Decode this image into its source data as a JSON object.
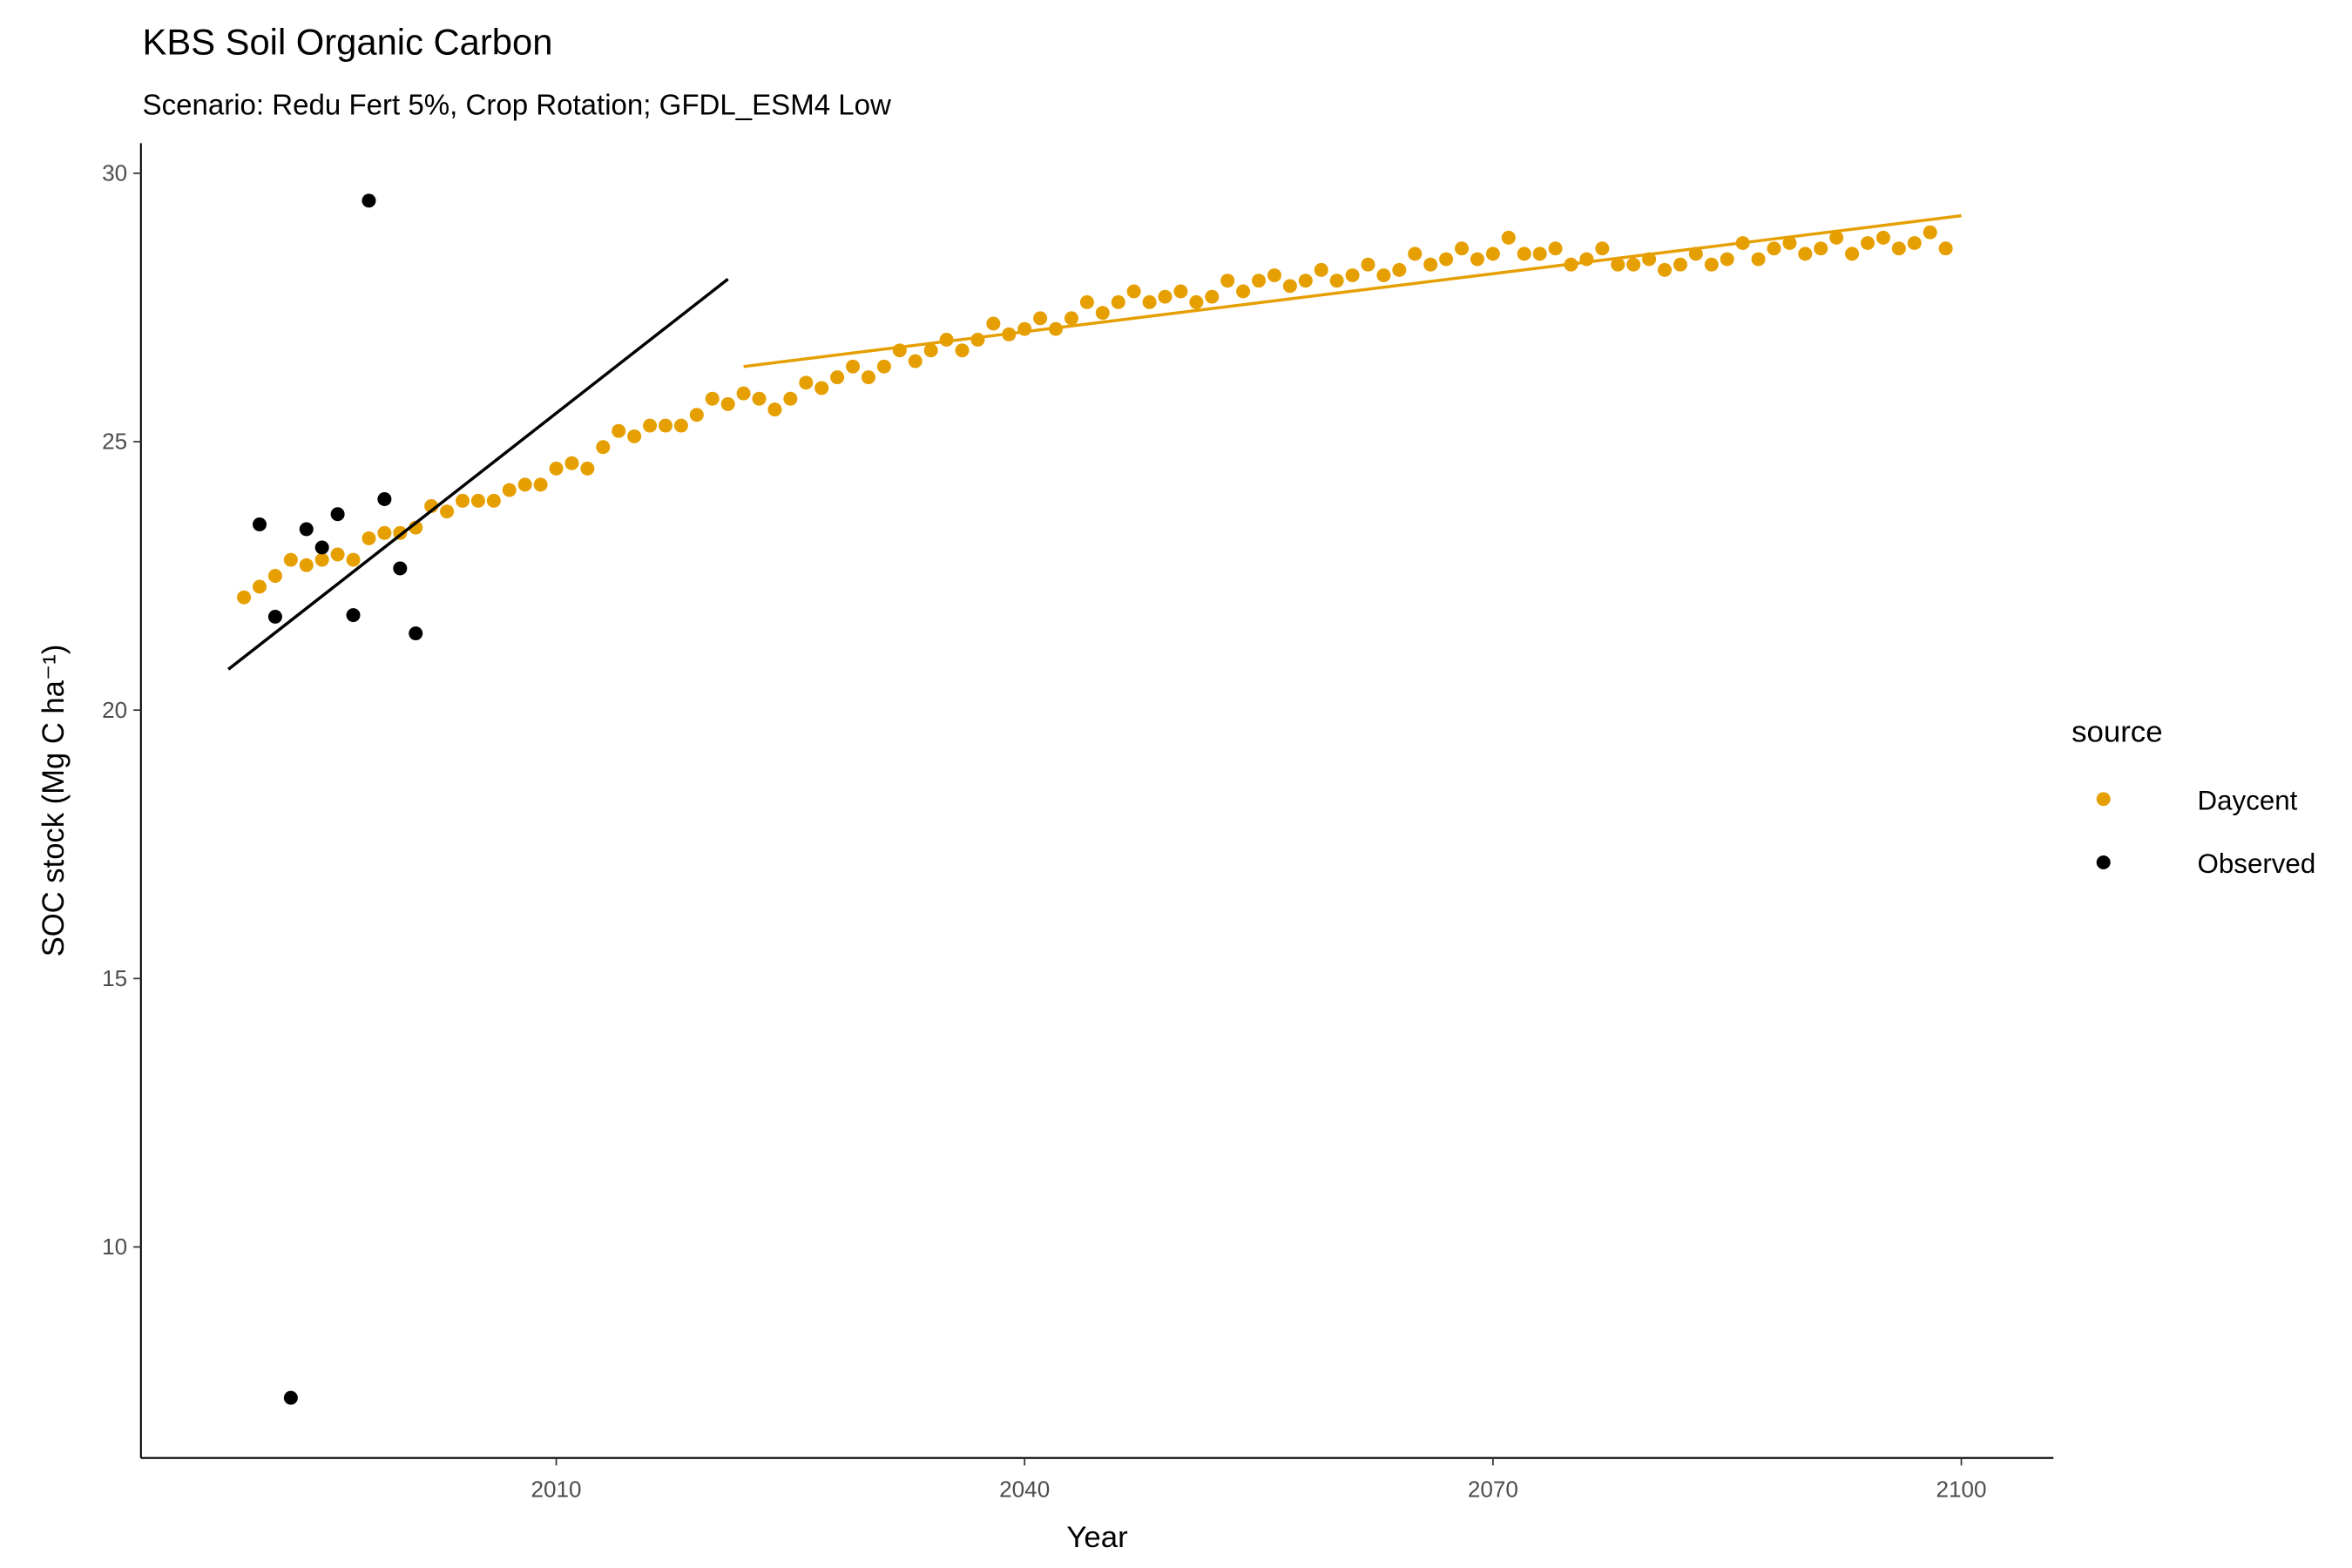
{
  "chart_data": {
    "type": "scatter",
    "title": "KBS Soil Organic Carbon",
    "subtitle": "Scenario: Redu Fert 5%, Crop Rotation; GFDL_ESM4 Low",
    "x_label": "Year",
    "y_label": "SOC stock (Mg C ha⁻¹)",
    "legend_title": "source",
    "legend_position": "right",
    "xlim": [
      1983.4,
      2105.9
    ],
    "xticks": [
      2010,
      2040,
      2070,
      2100
    ],
    "ylim": [
      6.07,
      30.56
    ],
    "yticks": [
      10,
      15,
      20,
      25,
      30
    ],
    "grid": false,
    "series": [
      {
        "name": "Daycent",
        "color": "#E69F00",
        "x": [
          1990,
          1991,
          1992,
          1993,
          1994,
          1995,
          1996,
          1997,
          1998,
          1999,
          2000,
          2001,
          2002,
          2003,
          2004,
          2005,
          2006,
          2007,
          2008,
          2009,
          2010,
          2011,
          2012,
          2013,
          2014,
          2015,
          2016,
          2017,
          2018,
          2019,
          2020,
          2021,
          2022,
          2023,
          2024,
          2025,
          2026,
          2027,
          2028,
          2029,
          2030,
          2031,
          2032,
          2033,
          2034,
          2035,
          2036,
          2037,
          2038,
          2039,
          2040,
          2041,
          2042,
          2043,
          2044,
          2045,
          2046,
          2047,
          2048,
          2049,
          2050,
          2051,
          2052,
          2053,
          2054,
          2055,
          2056,
          2057,
          2058,
          2059,
          2060,
          2061,
          2062,
          2063,
          2064,
          2065,
          2066,
          2067,
          2068,
          2069,
          2070,
          2071,
          2072,
          2073,
          2074,
          2075,
          2076,
          2077,
          2078,
          2079,
          2080,
          2081,
          2082,
          2083,
          2084,
          2085,
          2086,
          2087,
          2088,
          2089,
          2090,
          2091,
          2092,
          2093,
          2094,
          2095,
          2096,
          2097,
          2098,
          2099
        ],
        "values": [
          22.1,
          22.3,
          22.5,
          22.8,
          22.7,
          22.8,
          22.9,
          22.8,
          23.2,
          23.3,
          23.3,
          23.4,
          23.8,
          23.7,
          23.9,
          23.9,
          23.9,
          24.1,
          24.2,
          24.2,
          24.5,
          24.6,
          24.5,
          24.9,
          25.2,
          25.1,
          25.3,
          25.3,
          25.3,
          25.5,
          25.8,
          25.7,
          25.9,
          25.8,
          25.6,
          25.8,
          26.1,
          26.0,
          26.2,
          26.4,
          26.2,
          26.4,
          26.7,
          26.5,
          26.7,
          26.9,
          26.7,
          26.9,
          27.2,
          27.0,
          27.1,
          27.3,
          27.1,
          27.3,
          27.6,
          27.4,
          27.6,
          27.8,
          27.6,
          27.7,
          27.8,
          27.6,
          27.7,
          28.0,
          27.8,
          28.0,
          28.1,
          27.9,
          28.0,
          28.2,
          28.0,
          28.1,
          28.3,
          28.1,
          28.2,
          28.5,
          28.3,
          28.4,
          28.6,
          28.4,
          28.5,
          28.8,
          28.5,
          28.5,
          28.6,
          28.3,
          28.4,
          28.6,
          28.3,
          28.3,
          28.4,
          28.2,
          28.3,
          28.5,
          28.3,
          28.4,
          28.7,
          28.4,
          28.6,
          28.7,
          28.5,
          28.6,
          28.8,
          28.5,
          28.7,
          28.8,
          28.6,
          28.7,
          28.9,
          28.6
        ]
      },
      {
        "name": "Observed",
        "color": "#000000",
        "x": [
          1991,
          1992,
          1993,
          1994,
          1995,
          1996,
          1997,
          1998,
          1999,
          2000,
          2001
        ],
        "values": [
          23.46,
          21.74,
          7.19,
          23.37,
          23.03,
          23.65,
          21.77,
          29.49,
          23.93,
          22.64,
          21.43
        ]
      }
    ],
    "trend_lines": [
      {
        "color": "#000000",
        "x": [
          1989,
          2021
        ],
        "values": [
          20.76,
          28.03
        ]
      },
      {
        "color": "#E69F00",
        "x": [
          2022,
          2100
        ],
        "values": [
          26.4,
          29.21
        ]
      }
    ]
  }
}
